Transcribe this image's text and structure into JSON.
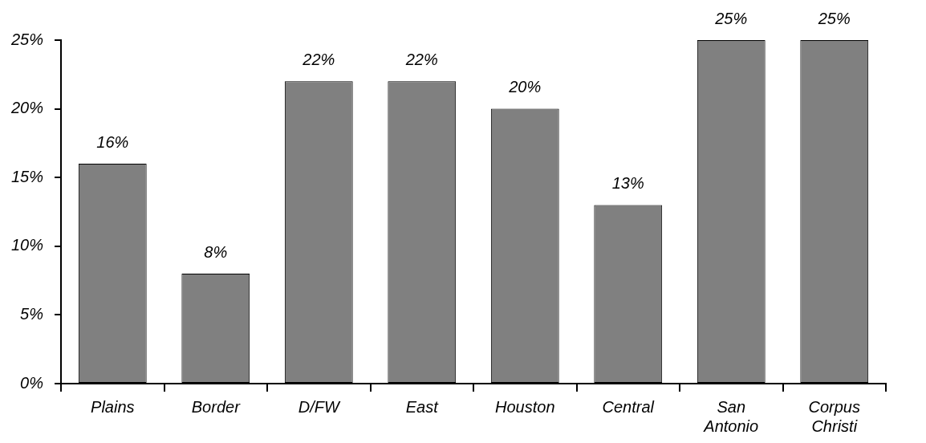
{
  "chart_data": {
    "type": "bar",
    "categories": [
      "Plains",
      "Border",
      "D/FW",
      "East",
      "Houston",
      "Central",
      "San Antonio",
      "Corpus Christi"
    ],
    "values": [
      16,
      8,
      22,
      22,
      20,
      13,
      25,
      25
    ],
    "color": "#808080",
    "value_labels": [
      "16%",
      "8%",
      "22%",
      "22%",
      "20%",
      "13%",
      "25%",
      "25%"
    ],
    "ylim": [
      0,
      25
    ],
    "yticks": [
      {
        "value": 0,
        "label": "0%"
      },
      {
        "value": 5,
        "label": "5%"
      },
      {
        "value": 10,
        "label": "10%"
      },
      {
        "value": 15,
        "label": "15%"
      },
      {
        "value": 20,
        "label": "20%"
      },
      {
        "value": 25,
        "label": "25%"
      }
    ],
    "grid": false,
    "legend": false
  }
}
